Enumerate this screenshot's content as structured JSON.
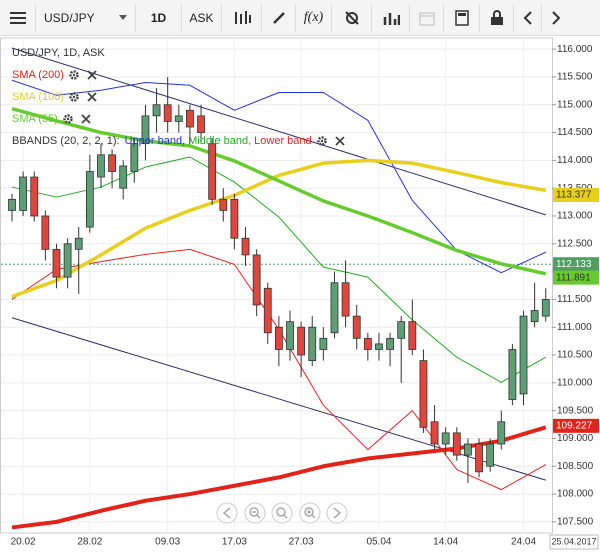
{
  "toolbar": {
    "symbol": "USD/JPY",
    "timeframe": "1D",
    "price_type": "ASK",
    "indicators": "f(x)"
  },
  "chart_data": {
    "type": "candlestick",
    "title": "USD/JPY, 1D, ASK",
    "categories": [
      null,
      "20.02",
      null,
      null,
      null,
      null,
      null,
      "28.02",
      null,
      null,
      null,
      null,
      null,
      null,
      "09.03",
      null,
      null,
      null,
      null,
      null,
      "17.03",
      null,
      null,
      null,
      null,
      null,
      "27.03",
      null,
      null,
      null,
      null,
      null,
      null,
      "05.04",
      null,
      null,
      null,
      null,
      null,
      "14.04",
      null,
      null,
      null,
      null,
      null,
      null,
      "24.04",
      null,
      null
    ],
    "open": [
      113.1,
      113.1,
      113.7,
      113.0,
      112.4,
      111.9,
      112.4,
      112.8,
      113.7,
      114.1,
      113.5,
      113.8,
      114.3,
      114.8,
      115.0,
      114.7,
      114.9,
      114.8,
      114.3,
      113.3,
      113.3,
      112.6,
      112.3,
      111.7,
      111.0,
      110.6,
      111.0,
      110.4,
      110.6,
      110.9,
      111.8,
      111.2,
      110.8,
      110.6,
      110.6,
      110.8,
      111.1,
      110.4,
      109.3,
      108.9,
      109.1,
      108.7,
      108.9,
      108.5,
      108.9,
      109.7,
      109.8,
      111.1,
      111.2
    ],
    "high": [
      113.4,
      113.8,
      113.8,
      113.1,
      112.5,
      112.6,
      112.8,
      114.1,
      114.3,
      114.2,
      114.0,
      114.4,
      115.0,
      115.3,
      115.5,
      115.0,
      115.0,
      115.0,
      114.4,
      113.5,
      113.4,
      112.8,
      112.4,
      111.8,
      111.2,
      111.3,
      111.1,
      111.2,
      111.0,
      112.0,
      112.2,
      111.4,
      110.9,
      110.9,
      110.9,
      111.2,
      111.5,
      110.6,
      109.6,
      109.2,
      109.2,
      109.0,
      109.0,
      109.0,
      109.5,
      110.7,
      111.3,
      111.8,
      111.7
    ],
    "low": [
      112.9,
      113.0,
      112.9,
      112.2,
      111.7,
      111.7,
      111.6,
      112.7,
      113.5,
      113.5,
      113.3,
      113.6,
      114.0,
      114.5,
      114.5,
      114.5,
      114.3,
      114.3,
      113.2,
      112.9,
      112.4,
      112.1,
      111.2,
      110.7,
      110.3,
      110.4,
      110.1,
      110.3,
      110.4,
      110.8,
      111.0,
      110.6,
      110.4,
      110.4,
      110.3,
      110.0,
      110.5,
      109.1,
      108.8,
      108.7,
      108.6,
      108.2,
      108.3,
      108.4,
      108.8,
      109.6,
      109.6,
      111.0,
      111.1
    ],
    "close": [
      113.3,
      113.7,
      113.0,
      112.4,
      111.9,
      112.5,
      112.6,
      113.8,
      114.1,
      113.8,
      113.9,
      114.3,
      114.8,
      115.0,
      114.7,
      114.8,
      114.6,
      114.5,
      113.3,
      113.1,
      112.6,
      112.3,
      111.4,
      110.9,
      110.6,
      111.1,
      110.5,
      111.0,
      110.8,
      111.8,
      111.2,
      110.8,
      110.6,
      110.7,
      110.8,
      111.1,
      110.6,
      109.2,
      108.9,
      109.1,
      108.7,
      108.9,
      108.4,
      108.9,
      109.3,
      110.6,
      111.2,
      111.3,
      111.5
    ],
    "up_color": "#5e9e74",
    "down_color": "#e0463c",
    "overlays": [
      {
        "name": "SMA (200)",
        "color": "#e2231a",
        "width": 4,
        "x": [
          0,
          4,
          8,
          12,
          16,
          20,
          24,
          28,
          32,
          36,
          40,
          44,
          48
        ],
        "values": [
          107.4,
          107.5,
          107.7,
          107.88,
          108.0,
          108.15,
          108.3,
          108.5,
          108.64,
          108.73,
          108.82,
          108.96,
          109.2
        ]
      },
      {
        "name": "SMA (100)",
        "color": "#e8cf1c",
        "width": 3.5,
        "x": [
          0,
          4,
          8,
          12,
          16,
          20,
          24,
          28,
          32,
          36,
          40,
          44,
          48
        ],
        "values": [
          111.55,
          111.84,
          112.3,
          112.78,
          113.1,
          113.37,
          113.73,
          113.95,
          114.0,
          113.95,
          113.78,
          113.6,
          113.46
        ]
      },
      {
        "name": "SMA (55)",
        "color": "#66cc2e",
        "width": 3.5,
        "x": [
          0,
          4,
          8,
          12,
          16,
          20,
          24,
          28,
          32,
          36,
          40,
          44,
          48
        ],
        "values": [
          114.93,
          114.71,
          114.5,
          114.35,
          114.26,
          113.99,
          113.63,
          113.27,
          113.0,
          112.7,
          112.38,
          112.14,
          111.96
        ]
      }
    ],
    "bbands": {
      "name": "BBANDS (20, 2, 2, 1):",
      "bands": [
        {
          "name": "Upper band,",
          "color": "#2233dd",
          "x": [
            0,
            4,
            8,
            12,
            16,
            20,
            24,
            28,
            32,
            36,
            40,
            44,
            48
          ],
          "values": [
            115.44,
            115.17,
            115.26,
            115.4,
            115.35,
            114.9,
            115.22,
            115.22,
            114.72,
            113.28,
            112.38,
            111.98,
            112.35
          ]
        },
        {
          "name": "Middle band,",
          "color": "#22aa22",
          "x": [
            0,
            4,
            8,
            12,
            16,
            20,
            24,
            28,
            32,
            36,
            40,
            44,
            48
          ],
          "values": [
            113.52,
            113.34,
            113.52,
            113.88,
            114.06,
            113.61,
            112.98,
            112.08,
            111.9,
            111.13,
            110.46,
            110.01,
            110.46
          ]
        },
        {
          "name": "Lower band",
          "color": "#ee2222",
          "x": [
            0,
            4,
            8,
            12,
            16,
            20,
            24,
            28,
            32,
            36,
            40,
            44,
            48
          ],
          "values": [
            111.5,
            112.04,
            112.18,
            112.31,
            112.4,
            112.13,
            110.96,
            109.6,
            108.8,
            109.5,
            108.44,
            108.08,
            108.53
          ]
        }
      ]
    },
    "trendlines": [
      {
        "color": "#2b2f6b",
        "x": [
          0,
          48
        ],
        "values": [
          116.02,
          113.02
        ]
      },
      {
        "color": "#2b2f6b",
        "x": [
          0,
          48
        ],
        "values": [
          111.17,
          108.25
        ]
      }
    ],
    "price_labels": [
      {
        "value": 113.377,
        "label": "113.377",
        "color": "#e8cf1c",
        "text_color": "#333333"
      },
      {
        "value": 112.133,
        "label": "112.133",
        "color": "#4f9e62",
        "text_color": "#ffffff"
      },
      {
        "value": 111.891,
        "label": "111.891",
        "color": "#66cc2e",
        "text_color": "#333333"
      },
      {
        "value": 109.227,
        "label": "109.227",
        "color": "#e2231a",
        "text_color": "#ffffff"
      }
    ],
    "current_price": 112.133,
    "current_date": "25.04.2017",
    "ylim": [
      107.3,
      116.2
    ],
    "yticks": [
      {
        "value": 107.5,
        "label": "107.500"
      },
      {
        "value": 108,
        "label": "108.000"
      },
      {
        "value": 108.5,
        "label": "108.500"
      },
      {
        "value": 109,
        "label": "109.000"
      },
      {
        "value": 109.5,
        "label": "109.500"
      },
      {
        "value": 110,
        "label": "110.000"
      },
      {
        "value": 110.5,
        "label": "110.500"
      },
      {
        "value": 111,
        "label": "111.000"
      },
      {
        "value": 111.5,
        "label": "111.500"
      },
      {
        "value": 112,
        "label": "112.000"
      },
      {
        "value": 112.5,
        "label": "112.500"
      },
      {
        "value": 113,
        "label": "113.000"
      },
      {
        "value": 113.5,
        "label": "113.500"
      },
      {
        "value": 114,
        "label": "114.000"
      },
      {
        "value": 114.5,
        "label": "114.500"
      },
      {
        "value": 115,
        "label": "115.000"
      },
      {
        "value": 115.5,
        "label": "115.500"
      },
      {
        "value": 116,
        "label": "116.000"
      }
    ],
    "grid": true
  }
}
